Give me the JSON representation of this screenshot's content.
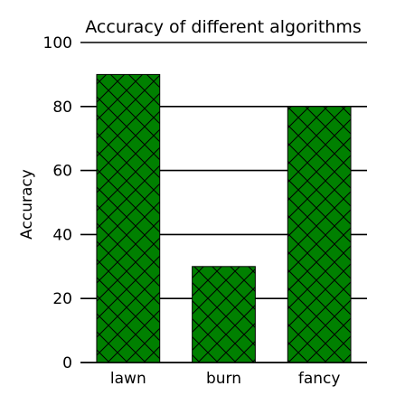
{
  "chart_data": {
    "type": "bar",
    "title": "Accuracy of different algorithms",
    "xlabel": "",
    "ylabel": "Accuracy",
    "categories": [
      "lawn",
      "burn",
      "fancy"
    ],
    "values": [
      90,
      30,
      80
    ],
    "ylim": [
      0,
      100
    ],
    "yticks": [
      0,
      20,
      40,
      60,
      80,
      100
    ],
    "grid": "horizontal",
    "bar_color": "#008000",
    "hatch": "cross-hatch"
  }
}
